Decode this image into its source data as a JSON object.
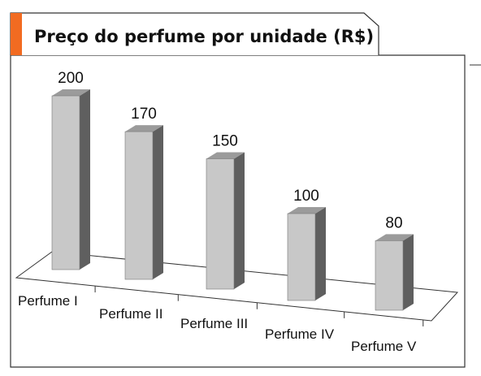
{
  "chart_data": {
    "type": "bar",
    "title": "Preço do perfume por unidade (R$)",
    "categories": [
      "Perfume I",
      "Perfume II",
      "Perfume III",
      "Perfume IV",
      "Perfume V"
    ],
    "values": [
      200,
      170,
      150,
      100,
      80
    ],
    "value_labels": [
      "200",
      "170",
      "150",
      "100",
      "80"
    ],
    "xlabel": "",
    "ylabel": "",
    "ylim": [
      0,
      200
    ],
    "grid": false,
    "legend": "none",
    "bar_3d": true
  },
  "colors": {
    "accent": "#f26b21",
    "bar_front": "#c8c8c8",
    "bar_side": "#5f5f5f",
    "bar_top": "#9b9b9b",
    "frame": "#333333"
  }
}
